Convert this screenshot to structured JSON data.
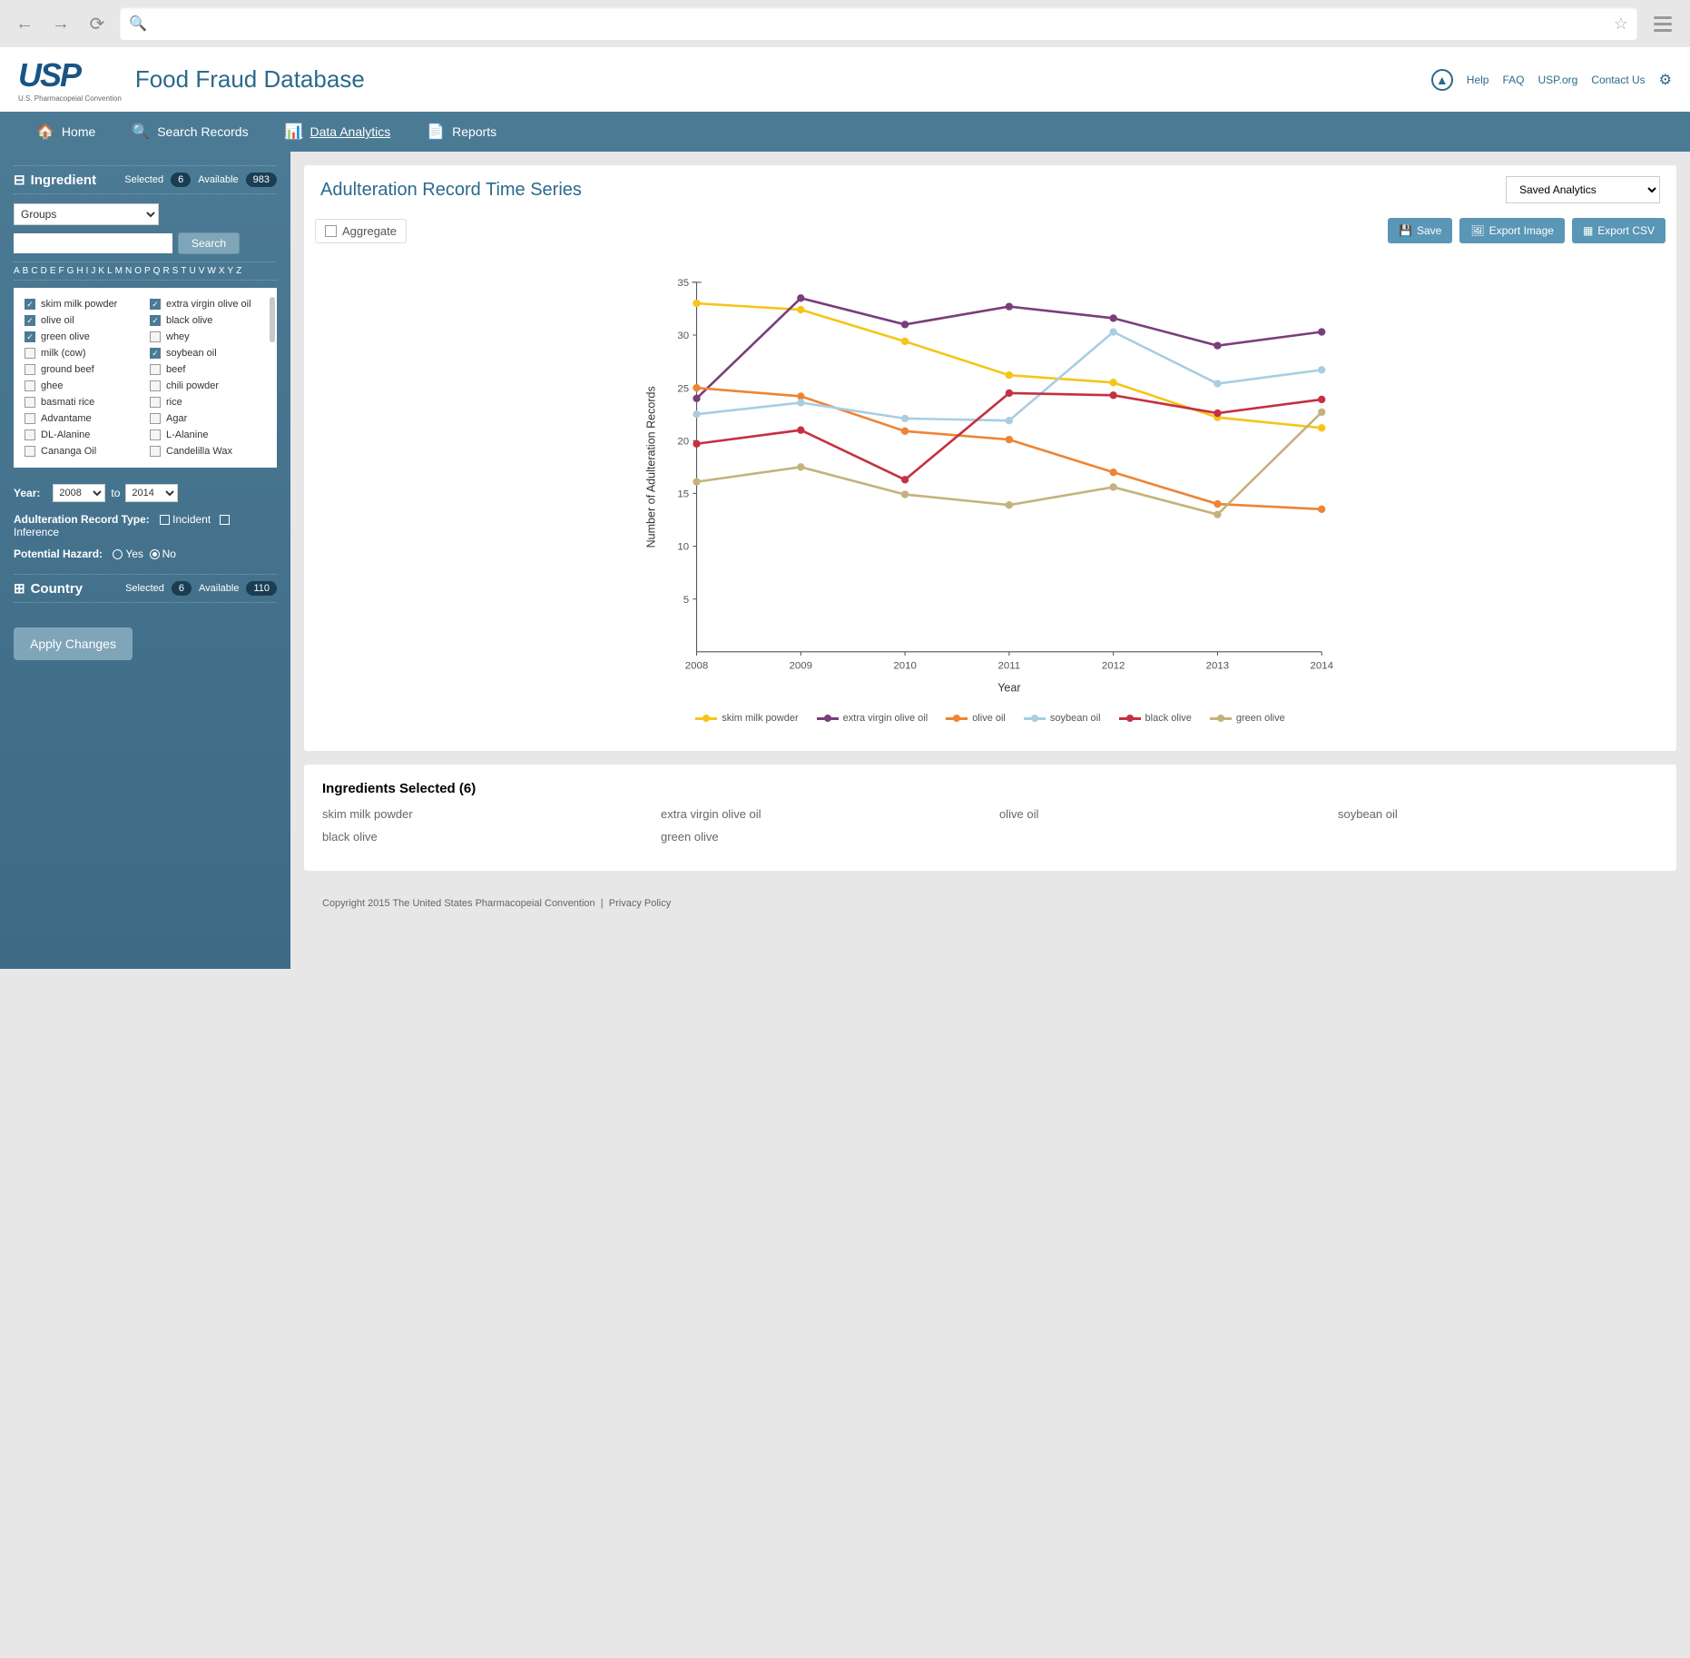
{
  "site": {
    "title": "Food Fraud Database",
    "logo_text": "USP",
    "logo_sub": "U.S. Pharmacopeial Convention"
  },
  "header_links": [
    "Help",
    "FAQ",
    "USP.org",
    "Contact Us"
  ],
  "nav": [
    {
      "icon": "home",
      "label": "Home"
    },
    {
      "icon": "search",
      "label": "Search Records"
    },
    {
      "icon": "chart",
      "label": "Data Analytics",
      "active": true
    },
    {
      "icon": "doc",
      "label": "Reports"
    }
  ],
  "sidebar": {
    "ingredient": {
      "title": "Ingredient",
      "selected_label": "Selected",
      "selected_count": "6",
      "available_label": "Available",
      "available_count": "983",
      "groups_label": "Groups",
      "search_btn": "Search",
      "alphabet": [
        "A",
        "B",
        "C",
        "D",
        "E",
        "F",
        "G",
        "H",
        "I",
        "J",
        "K",
        "L",
        "M",
        "N",
        "O",
        "P",
        "Q",
        "R",
        "S",
        "T",
        "U",
        "V",
        "W",
        "X",
        "Y",
        "Z"
      ],
      "items": [
        {
          "label": "skim milk powder",
          "checked": true
        },
        {
          "label": "extra virgin olive oil",
          "checked": true
        },
        {
          "label": "olive oil",
          "checked": true
        },
        {
          "label": "black olive",
          "checked": true
        },
        {
          "label": "green olive",
          "checked": true
        },
        {
          "label": "whey",
          "checked": false
        },
        {
          "label": "milk (cow)",
          "checked": false
        },
        {
          "label": "soybean oil",
          "checked": true
        },
        {
          "label": "ground beef",
          "checked": false
        },
        {
          "label": "beef",
          "checked": false
        },
        {
          "label": "ghee",
          "checked": false
        },
        {
          "label": "chili powder",
          "checked": false
        },
        {
          "label": "basmati rice",
          "checked": false
        },
        {
          "label": "rice",
          "checked": false
        },
        {
          "label": "Advantame",
          "checked": false
        },
        {
          "label": "Agar",
          "checked": false
        },
        {
          "label": "DL-Alanine",
          "checked": false
        },
        {
          "label": "L-Alanine",
          "checked": false
        },
        {
          "label": "Cananga Oil",
          "checked": false
        },
        {
          "label": "Candelilla Wax",
          "checked": false
        }
      ]
    },
    "year": {
      "label": "Year:",
      "from": "2008",
      "to_label": "to",
      "to": "2014"
    },
    "record_type": {
      "label": "Adulteration Record Type:",
      "opts": [
        "Incident",
        "Inference"
      ]
    },
    "hazard": {
      "label": "Potential Hazard:",
      "opts": [
        "Yes",
        "No"
      ],
      "selected": "No"
    },
    "country": {
      "title": "Country",
      "selected_label": "Selected",
      "selected_count": "6",
      "available_label": "Available",
      "available_count": "110"
    },
    "apply_btn": "Apply Changes"
  },
  "content": {
    "title": "Adulteration Record Time Series",
    "saved_select": "Saved Analytics",
    "aggregate_label": "Aggregate",
    "buttons": {
      "save": "Save",
      "export_image": "Export Image",
      "export_csv": "Export CSV"
    },
    "chart": {
      "type": "line",
      "xlabel": "Year",
      "ylabel": "Number of Adulteration Records",
      "x_categories": [
        "2008",
        "2009",
        "2010",
        "2011",
        "2012",
        "2013",
        "2014"
      ],
      "ylim": [
        0,
        35
      ],
      "ytick_start": 5,
      "ytick_step": 5,
      "label_fontsize": 12,
      "background_color": "#ffffff",
      "axis_color": "#555555",
      "series": [
        {
          "name": "skim milk powder",
          "color": "#f5c518",
          "values": [
            33.0,
            32.4,
            29.4,
            26.2,
            25.5,
            22.2,
            21.2
          ]
        },
        {
          "name": "extra virgin olive oil",
          "color": "#7a3e7a",
          "values": [
            24.0,
            33.5,
            31.0,
            32.7,
            31.6,
            29.0,
            30.3
          ]
        },
        {
          "name": "olive oil",
          "color": "#ee8434",
          "values": [
            25.0,
            24.2,
            20.9,
            20.1,
            17.0,
            14.0,
            13.5
          ]
        },
        {
          "name": "soybean oil",
          "color": "#a9cde3",
          "values": [
            22.5,
            23.6,
            22.1,
            21.9,
            30.3,
            25.4,
            26.7
          ]
        },
        {
          "name": "black olive",
          "color": "#c43142",
          "values": [
            19.7,
            21.0,
            16.3,
            24.5,
            24.3,
            22.6,
            23.9
          ]
        },
        {
          "name": "green olive",
          "color": "#c4b27d",
          "values": [
            16.1,
            17.5,
            14.9,
            13.9,
            15.6,
            13.0,
            22.7
          ]
        }
      ]
    },
    "selected": {
      "title_prefix": "Ingredients Selected",
      "count": "6",
      "items": [
        "skim milk powder",
        "extra virgin olive oil",
        "olive oil",
        "soybean oil",
        "black olive",
        "green olive"
      ]
    }
  },
  "footer": {
    "copyright": "Copyright 2015 The United States Pharmacopeial Convention",
    "sep": "|",
    "privacy": "Privacy Policy"
  }
}
